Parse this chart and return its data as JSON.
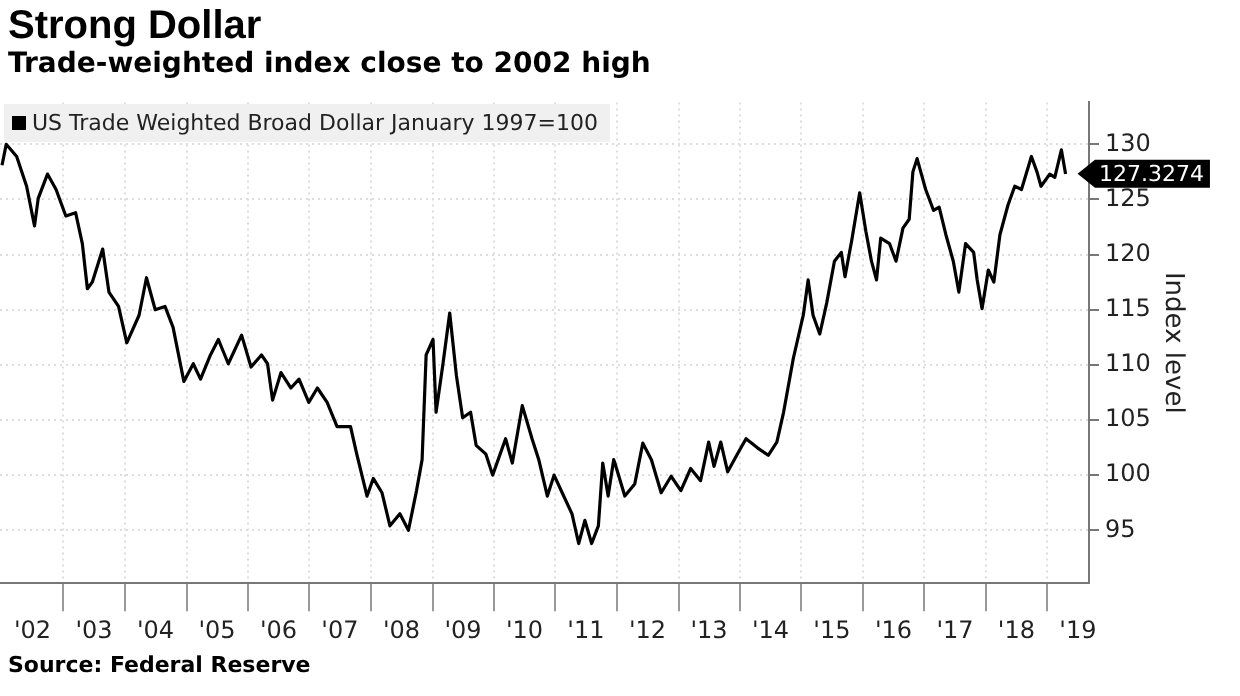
{
  "chart_data": {
    "type": "line",
    "title": "Strong Dollar",
    "subtitle": "Trade-weighted index close to 2002 high",
    "ylabel": "Index level",
    "x": [
      "2002-01-01",
      "2002-01-26",
      "2002-03-29",
      "2002-05-27",
      "2002-07-13",
      "2002-08-04",
      "2002-09-28",
      "2002-11-18",
      "2003-01-15",
      "2003-03-14",
      "2003-04-23",
      "2003-05-23",
      "2003-06-21",
      "2003-08-22",
      "2003-09-28",
      "2003-11-24",
      "2004-01-12",
      "2004-03-25",
      "2004-05-08",
      "2004-06-29",
      "2004-08-26",
      "2004-10-13",
      "2004-12-16",
      "2005-02-10",
      "2005-03-25",
      "2005-05-23",
      "2005-07-09",
      "2005-09-06",
      "2005-11-24",
      "2006-01-19",
      "2006-03-22",
      "2006-04-27",
      "2006-05-27",
      "2006-07-16",
      "2006-09-13",
      "2006-10-31",
      "2006-12-28",
      "2007-02-17",
      "2007-04-16",
      "2007-06-14",
      "2007-09-02",
      "2007-10-09",
      "2007-12-09",
      "2008-01-15",
      "2008-03-07",
      "2008-04-23",
      "2008-06-21",
      "2008-08-11",
      "2008-09-28",
      "2008-10-31",
      "2008-11-24",
      "2009-01-04",
      "2009-01-22",
      "2009-03-04",
      "2009-04-13",
      "2009-05-23",
      "2009-06-29",
      "2009-08-15",
      "2009-09-17",
      "2009-11-14",
      "2009-12-24",
      "2010-03-11",
      "2010-04-20",
      "2010-06-18",
      "2010-08-15",
      "2010-09-24",
      "2010-11-14",
      "2010-12-24",
      "2011-02-10",
      "2011-04-09",
      "2011-05-19",
      "2011-06-25",
      "2011-08-04",
      "2011-09-13",
      "2011-10-09",
      "2011-11-10",
      "2011-12-13",
      "2011-12-20",
      "2012-02-17",
      "2012-04-16",
      "2012-06-03",
      "2012-07-24",
      "2012-09-20",
      "2012-11-18",
      "2013-01-15",
      "2013-03-14",
      "2013-05-12",
      "2013-06-29",
      "2013-07-31",
      "2013-09-09",
      "2013-10-20",
      "2013-12-16",
      "2014-02-06",
      "2014-04-13",
      "2014-06-18",
      "2014-08-08",
      "2014-09-17",
      "2014-11-14",
      "2015-01-12",
      "2015-02-10",
      "2015-03-11",
      "2015-04-20",
      "2015-05-31",
      "2015-07-16",
      "2015-08-26",
      "2015-09-17",
      "2015-10-27",
      "2015-12-13",
      "2016-01-19",
      "2016-02-21",
      "2016-03-22",
      "2016-04-16",
      "2016-06-07",
      "2016-07-16",
      "2016-08-26",
      "2016-10-02",
      "2016-10-24",
      "2016-11-18",
      "2017-01-08",
      "2017-02-24",
      "2017-03-29",
      "2017-05-08",
      "2017-06-21",
      "2017-07-24",
      "2017-09-02",
      "2017-10-20",
      "2017-11-10",
      "2017-12-09",
      "2018-01-15",
      "2018-02-17",
      "2018-03-25",
      "2018-05-12",
      "2018-06-21",
      "2018-07-31",
      "2018-09-28",
      "2018-10-31",
      "2018-11-24",
      "2019-01-15",
      "2019-02-14",
      "2019-03-25",
      "2019-04-19"
    ],
    "series": [
      {
        "name": "US Trade Weighted Broad Dollar January 1997=100",
        "color": "#000000",
        "values": [
          128.1,
          130,
          128.9,
          126.2,
          122.6,
          125.1,
          127.3,
          125.9,
          123.5,
          123.8,
          121,
          116.9,
          117.5,
          120.5,
          116.6,
          115.3,
          112,
          114.5,
          117.9,
          115,
          115.3,
          113.4,
          108.5,
          110.1,
          108.7,
          110.9,
          112.3,
          110.1,
          112.7,
          109.8,
          110.9,
          110.1,
          106.8,
          109.3,
          107.9,
          108.7,
          106.6,
          107.9,
          106.6,
          104.4,
          104.4,
          101.9,
          98.1,
          99.7,
          98.4,
          95.4,
          96.5,
          95,
          98.6,
          101.4,
          110.9,
          112.3,
          105.7,
          110.1,
          114.7,
          109,
          105.2,
          105.7,
          102.7,
          101.9,
          100,
          103.3,
          101.1,
          106.3,
          103.3,
          101.4,
          98.1,
          100,
          98.4,
          96.5,
          93.8,
          95.9,
          93.8,
          95.4,
          101.1,
          98.1,
          101.4,
          101.1,
          98.1,
          99.2,
          102.9,
          101.4,
          98.4,
          99.9,
          98.6,
          100.6,
          99.5,
          103,
          100.8,
          103,
          100.3,
          101.9,
          103.3,
          102.5,
          101.8,
          103,
          105.7,
          110.6,
          114.5,
          117.7,
          114.5,
          112.8,
          115.6,
          119.4,
          120.2,
          118,
          121.3,
          125.6,
          122.1,
          119.4,
          117.7,
          121.5,
          121,
          119.4,
          122.4,
          123.2,
          127.5,
          128.7,
          125.9,
          124,
          124.3,
          121.8,
          119.4,
          116.6,
          121,
          120.2,
          117.7,
          115.1,
          118.6,
          117.5,
          121.8,
          124.5,
          126.2,
          125.9,
          128.9,
          127.5,
          126.2,
          127.3,
          127,
          129.5,
          127.3
        ]
      }
    ],
    "xlim": [
      "2001-12-20",
      "2019-09-05"
    ],
    "xticks": [
      {
        "value": "2003",
        "label": null
      },
      {
        "value": "2004",
        "label": null
      },
      {
        "value": "2005",
        "label": null
      },
      {
        "value": "2006",
        "label": null
      },
      {
        "value": "2007",
        "label": null
      },
      {
        "value": "2008",
        "label": null
      },
      {
        "value": "2009",
        "label": null
      },
      {
        "value": "2010",
        "label": null
      },
      {
        "value": "2011",
        "label": null
      },
      {
        "value": "2012",
        "label": null
      },
      {
        "value": "2013",
        "label": null
      },
      {
        "value": "2014",
        "label": null
      },
      {
        "value": "2015",
        "label": null
      },
      {
        "value": "2016",
        "label": null
      },
      {
        "value": "2017",
        "label": null
      },
      {
        "value": "2018",
        "label": null
      },
      {
        "value": "2019",
        "label": null
      },
      {
        "value": "2002-07",
        "label": "'02"
      },
      {
        "value": "2003-07",
        "label": "'03"
      },
      {
        "value": "2004-07",
        "label": "'04"
      },
      {
        "value": "2005-07",
        "label": "'05"
      },
      {
        "value": "2006-07",
        "label": "'06"
      },
      {
        "value": "2007-07",
        "label": "'07"
      },
      {
        "value": "2008-07",
        "label": "'08"
      },
      {
        "value": "2009-07",
        "label": "'09"
      },
      {
        "value": "2010-07",
        "label": "'10"
      },
      {
        "value": "2011-07",
        "label": "'11"
      },
      {
        "value": "2012-07",
        "label": "'12"
      },
      {
        "value": "2013-07",
        "label": "'13"
      },
      {
        "value": "2014-07",
        "label": "'14"
      },
      {
        "value": "2015-07",
        "label": "'15"
      },
      {
        "value": "2016-07",
        "label": "'16"
      },
      {
        "value": "2017-07",
        "label": "'17"
      },
      {
        "value": "2018-07",
        "label": "'18"
      },
      {
        "value": "2019-07",
        "label": "'19"
      }
    ],
    "ylim": [
      90.2,
      133.8
    ],
    "yticks": [
      95,
      100,
      105,
      110,
      115,
      120,
      125,
      130
    ],
    "grid": true,
    "legend": "top left",
    "marker": "none",
    "line_style": "solid",
    "annotations": [
      {
        "text": "127.3274",
        "x": "2019-04-19",
        "y": 127.3274
      },
      "Source: Federal Reserve"
    ]
  }
}
